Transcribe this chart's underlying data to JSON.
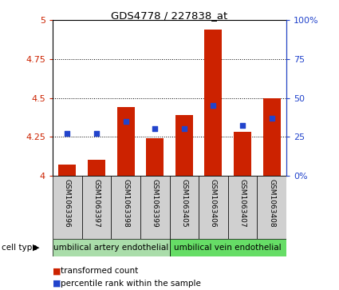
{
  "title": "GDS4778 / 227838_at",
  "samples": [
    "GSM1063396",
    "GSM1063397",
    "GSM1063398",
    "GSM1063399",
    "GSM1063405",
    "GSM1063406",
    "GSM1063407",
    "GSM1063408"
  ],
  "transformed_count": [
    4.07,
    4.1,
    4.44,
    4.24,
    4.39,
    4.94,
    4.28,
    4.5
  ],
  "percentile_rank": [
    27,
    27,
    35,
    30,
    30,
    45,
    32,
    37
  ],
  "ylim_left": [
    4.0,
    5.0
  ],
  "ylim_right": [
    0,
    100
  ],
  "yticks_left": [
    4.0,
    4.25,
    4.5,
    4.75,
    5.0
  ],
  "yticks_right": [
    0,
    25,
    50,
    75,
    100
  ],
  "ytick_labels_left": [
    "4",
    "4.25",
    "4.5",
    "4.75",
    "5"
  ],
  "ytick_labels_right": [
    "0%",
    "25",
    "50",
    "75",
    "100%"
  ],
  "bar_color": "#cc2200",
  "dot_color": "#2244cc",
  "bar_bottom": 4.0,
  "cell_type_groups": [
    {
      "label": "umbilical artery endothelial",
      "indices": [
        0,
        1,
        2,
        3
      ],
      "color": "#aaddaa"
    },
    {
      "label": "umbilical vein endothelial",
      "indices": [
        4,
        5,
        6,
        7
      ],
      "color": "#66dd66"
    }
  ],
  "cell_type_label": "cell type",
  "legend_items": [
    {
      "label": "transformed count",
      "color": "#cc2200"
    },
    {
      "label": "percentile rank within the sample",
      "color": "#2244cc"
    }
  ],
  "tick_label_color_left": "#cc2200",
  "tick_label_color_right": "#2244cc",
  "sample_box_color": "#d0d0d0"
}
